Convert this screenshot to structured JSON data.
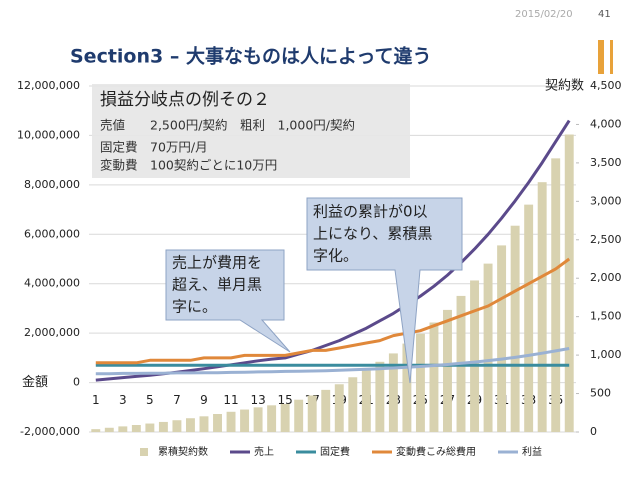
{
  "header": {
    "date": "2015/02/20",
    "page": "41",
    "title": "Section3 – 大事なものは人によって違う"
  },
  "chart_data": {
    "type": "combo",
    "y_label": "金額",
    "y2_label": "契約数",
    "categories": [
      1,
      null,
      3,
      null,
      5,
      null,
      7,
      null,
      9,
      null,
      11,
      null,
      13,
      null,
      15,
      null,
      17,
      null,
      19,
      null,
      21,
      null,
      23,
      null,
      25,
      null,
      27,
      null,
      29,
      null,
      31,
      null,
      33,
      null,
      35,
      null
    ],
    "ylim": [
      -2000000,
      12000000
    ],
    "yticks": [
      {
        "value": -2000000,
        "label": "-2,000,000"
      },
      0,
      {
        "value": 2000000,
        "label": "2,000,000"
      },
      {
        "value": 4000000,
        "label": "4,000,000"
      },
      {
        "value": 6000000,
        "label": "6,000,000"
      },
      {
        "value": 8000000,
        "label": "8,000,000"
      },
      {
        "value": 10000000,
        "label": "10,000,000"
      },
      {
        "value": 12000000,
        "label": "12,000,000"
      }
    ],
    "y2lim": [
      0,
      4500
    ],
    "y2ticks": [
      0,
      500,
      {
        "value": 1000,
        "label": "1,000"
      },
      {
        "value": 1500,
        "label": "1,500"
      },
      {
        "value": 2000,
        "label": "2,000"
      },
      {
        "value": 2500,
        "label": "2,500"
      },
      {
        "value": 3000,
        "label": "3,000"
      },
      {
        "value": 3500,
        "label": "3,500"
      },
      {
        "value": 4000,
        "label": "4,000"
      },
      {
        "value": 4500,
        "label": "4,500"
      }
    ],
    "grid": true,
    "legend": "bottom",
    "series": [
      {
        "name": "累積契約数",
        "type": "bar",
        "axis": "y2",
        "color": "#d8d2b0",
        "values": [
          37,
          55,
          73,
          91,
          110,
          131,
          153,
          179,
          204,
          234,
          263,
          292,
          321,
          347,
          365,
          420,
          475,
          548,
          621,
          712,
          803,
          913,
          1022,
          1150,
          1278,
          1424,
          1588,
          1770,
          1971,
          2190,
          2427,
          2683,
          2957,
          3249,
          3559,
          3869
        ]
      },
      {
        "name": "売上",
        "type": "line",
        "color": "#5b4a8b",
        "values": [
          100000,
          150000,
          200000,
          250000,
          300000,
          360000,
          420000,
          490000,
          560000,
          640000,
          720000,
          800000,
          880000,
          950000,
          1000000,
          1150000,
          1300000,
          1500000,
          1700000,
          1950000,
          2200000,
          2500000,
          2800000,
          3150000,
          3500000,
          3900000,
          4350000,
          4850000,
          5400000,
          6000000,
          6650000,
          7350000,
          8100000,
          8900000,
          9750000,
          10600000
        ]
      },
      {
        "name": "固定費",
        "type": "line",
        "color": "#3a8c9e",
        "values": [
          700000,
          700000,
          700000,
          700000,
          700000,
          700000,
          700000,
          700000,
          700000,
          700000,
          700000,
          700000,
          700000,
          700000,
          700000,
          700000,
          700000,
          700000,
          700000,
          700000,
          700000,
          700000,
          700000,
          700000,
          700000,
          700000,
          700000,
          700000,
          700000,
          700000,
          700000,
          700000,
          700000,
          700000,
          700000,
          700000
        ]
      },
      {
        "name": "変動費こみ総費用",
        "type": "line",
        "color": "#e0883a",
        "values": [
          800000,
          800000,
          800000,
          800000,
          900000,
          900000,
          900000,
          900000,
          1000000,
          1000000,
          1000000,
          1100000,
          1100000,
          1100000,
          1100000,
          1200000,
          1300000,
          1300000,
          1400000,
          1500000,
          1600000,
          1700000,
          1900000,
          2000000,
          2100000,
          2300000,
          2500000,
          2700000,
          2900000,
          3100000,
          3400000,
          3700000,
          4000000,
          4300000,
          4600000,
          5000000
        ]
      },
      {
        "name": "利益",
        "type": "line",
        "color": "#9ab1d3",
        "values": [
          360000,
          360000,
          370000,
          370000,
          380000,
          380000,
          390000,
          390000,
          400000,
          400000,
          410000,
          420000,
          430000,
          440000,
          450000,
          460000,
          470000,
          480000,
          500000,
          520000,
          540000,
          560000,
          590000,
          620000,
          650000,
          690000,
          730000,
          780000,
          830000,
          890000,
          950000,
          1020000,
          1100000,
          1190000,
          1280000,
          1380000
        ]
      }
    ],
    "info_box": [
      "損益分岐点の例その２",
      "売値　　2,500円/契約　粗利　1,000円/契約",
      "固定費　70万円/月",
      "変動費　100契約ごとに10万円"
    ],
    "annotations": [
      [
        "売上が費用を",
        "超え、単月黒",
        "字に。"
      ],
      [
        "利益の累計が0以",
        "上になり、累積黒",
        "字化。"
      ]
    ]
  }
}
